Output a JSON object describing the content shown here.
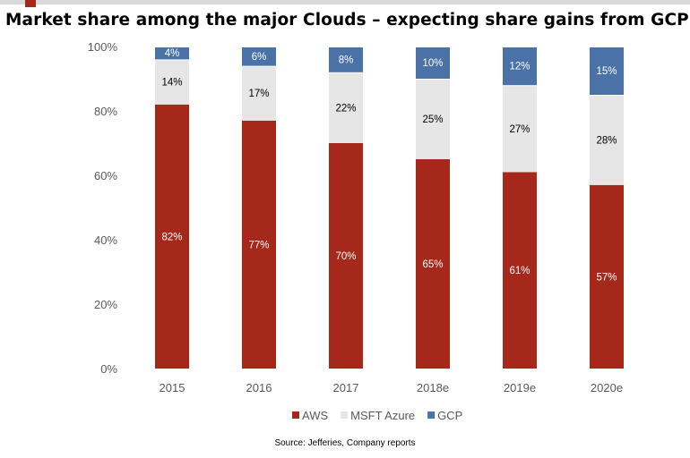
{
  "chart_data": {
    "type": "bar",
    "stacked": true,
    "title": "Market share among the major Clouds – expecting share gains from GCP",
    "categories": [
      "2015",
      "2016",
      "2017",
      "2018e",
      "2019e",
      "2020e"
    ],
    "series": [
      {
        "name": "AWS",
        "values": [
          82,
          77,
          70,
          65,
          61,
          57
        ],
        "color": "#a5281b",
        "label_color": "#ffffff"
      },
      {
        "name": "MSFT Azure",
        "values": [
          14,
          17,
          22,
          25,
          27,
          28
        ],
        "color": "#e6e6e6",
        "label_color": "#000000"
      },
      {
        "name": "GCP",
        "values": [
          4,
          6,
          8,
          10,
          12,
          15
        ],
        "color": "#4a72a6",
        "label_color": "#ffffff"
      }
    ],
    "ylim": [
      0,
      100
    ],
    "yticks": [
      "0%",
      "20%",
      "40%",
      "60%",
      "80%",
      "100%"
    ],
    "ytick_values": [
      0,
      20,
      40,
      60,
      80,
      100
    ],
    "value_suffix": "%",
    "grid": false,
    "legend_placement": "bottom",
    "source": "Source: Jefferies, Company reports"
  }
}
